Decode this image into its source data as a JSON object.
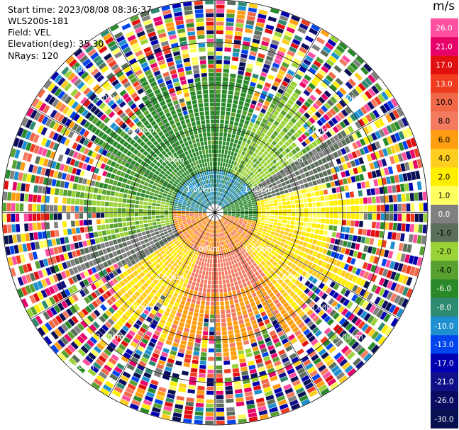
{
  "info": {
    "start_time": "Start time: 2023/08/08 08:36:37",
    "device": "WLS200s-181",
    "field": "Field: VEL",
    "elevation": "Elevation(deg): 35.30",
    "nrays": "NRays: 120"
  },
  "colorbar": {
    "unit": "m/s",
    "labels": [
      "26.0",
      "21.0",
      "17.0",
      "13.0",
      "10.0",
      "8.0",
      "6.0",
      "4.0",
      "2.0",
      "1.0",
      "0.0",
      "-1.0",
      "-2.0",
      "-4.0",
      "-6.0",
      "-8.0",
      "-10.0",
      "-13.0",
      "-17.0",
      "-21.0",
      "-26.0",
      "-30.0"
    ],
    "colors": [
      "#ff4fa0",
      "#e8006a",
      "#e01010",
      "#f03c20",
      "#f06848",
      "#f47a60",
      "#ff9e10",
      "#ffcc20",
      "#ffee00",
      "#ffff60",
      "#808080",
      "#5a6e5a",
      "#9ad238",
      "#58a030",
      "#2a8a2a",
      "#2e8a70",
      "#1e90d0",
      "#0044ee",
      "#0000b0",
      "#101088",
      "#0a0a60",
      "#081050"
    ]
  },
  "chart_data": {
    "type": "ppi",
    "field": "VEL",
    "units": "m/s",
    "n_rays": 120,
    "elevation_deg": 35.3,
    "range_ring_labels": [
      "1.00km",
      "2.00km",
      "3.00km",
      "3.00km"
    ],
    "inner_ring_labels": [
      "1.00km",
      "1.00km",
      "1.00km",
      "1.00km"
    ],
    "middle_ring_labels": [
      "2.00km",
      "2.00km",
      "2.00km",
      "2.00km"
    ],
    "outer_ring_labels": [
      "3.00km",
      "3.00km",
      "3.00km",
      "3.00km",
      "3.00km"
    ],
    "edge_ring_labels": [
      "3.00km",
      "3.00km"
    ]
  }
}
